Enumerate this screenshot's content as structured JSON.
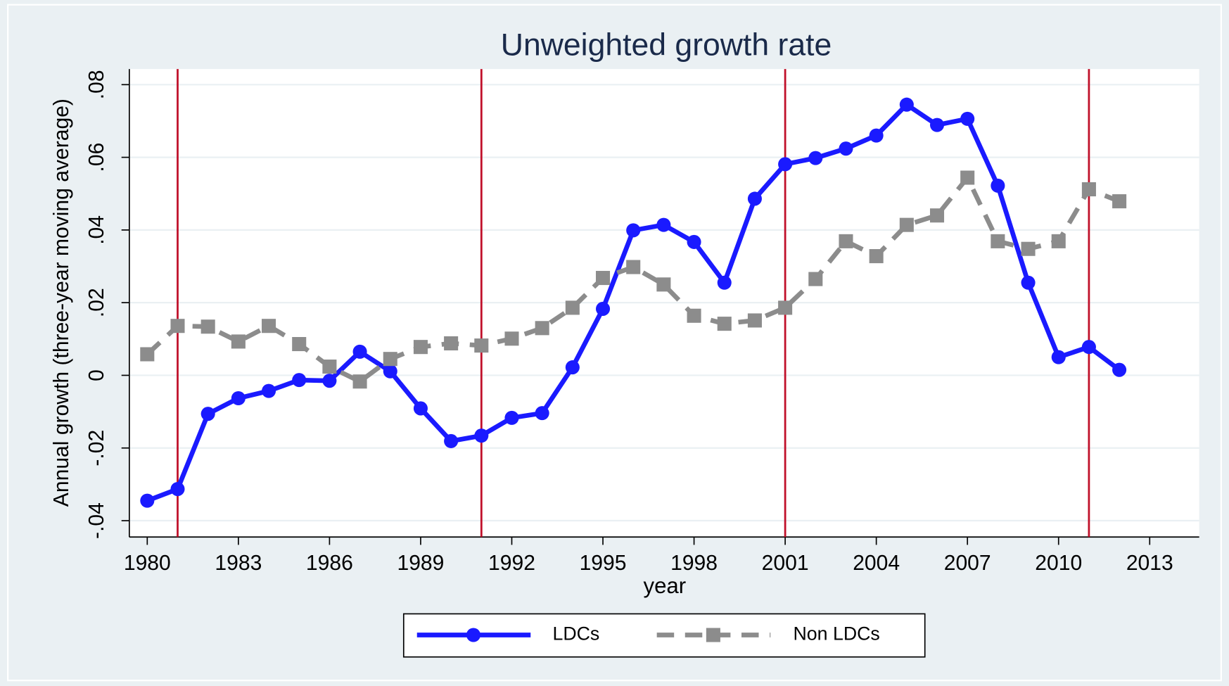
{
  "chart_data": {
    "type": "line",
    "title": "Unweighted growth rate",
    "x_label": "year",
    "y_label": "Annual growth (three-year moving average)",
    "x": [
      1980,
      1981,
      1982,
      1983,
      1984,
      1985,
      1986,
      1987,
      1988,
      1989,
      1990,
      1991,
      1992,
      1993,
      1994,
      1995,
      1996,
      1997,
      1998,
      1999,
      2000,
      2001,
      2002,
      2003,
      2004,
      2005,
      2006,
      2007,
      2008,
      2009,
      2010,
      2011,
      2012
    ],
    "series": [
      {
        "name": "LDCs",
        "color": "#1a1aff",
        "marker": "circle",
        "dashed": false,
        "values": [
          -0.0345,
          -0.0313,
          -0.0106,
          -0.0063,
          -0.0043,
          -0.0013,
          -0.0015,
          0.0065,
          0.0011,
          -0.0091,
          -0.0181,
          -0.0166,
          -0.0117,
          -0.0104,
          0.0022,
          0.0183,
          0.0399,
          0.0414,
          0.0367,
          0.0255,
          0.0486,
          0.0581,
          0.0598,
          0.0624,
          0.066,
          0.0745,
          0.0689,
          0.0706,
          0.0522,
          0.0255,
          0.005,
          0.0078,
          0.0015
        ]
      },
      {
        "name": "Non LDCs",
        "color": "#8c8c8c",
        "marker": "square",
        "dashed": true,
        "values": [
          0.0058,
          0.0136,
          0.0134,
          0.0093,
          0.0136,
          0.0086,
          0.0024,
          -0.0017,
          0.0045,
          0.0078,
          0.0088,
          0.0082,
          0.0101,
          0.013,
          0.0186,
          0.0268,
          0.0298,
          0.025,
          0.0164,
          0.0142,
          0.0151,
          0.0186,
          0.0265,
          0.0369,
          0.0328,
          0.0414,
          0.044,
          0.0544,
          0.0369,
          0.0348,
          0.0369,
          0.0512,
          0.0479
        ]
      }
    ],
    "xlim": [
      1979.41,
      2014.63
    ],
    "ylim": [
      -0.0445,
      0.0843
    ],
    "xticks": [
      1980,
      1983,
      1986,
      1989,
      1992,
      1995,
      1998,
      2001,
      2004,
      2007,
      2010,
      2013
    ],
    "yticks": [
      {
        "value": -0.04,
        "label": "-.04"
      },
      {
        "value": -0.02,
        "label": "-.02"
      },
      0,
      {
        "value": 0.02,
        "label": ".02"
      },
      {
        "value": 0.04,
        "label": ".04"
      },
      {
        "value": 0.06,
        "label": ".06"
      },
      {
        "value": 0.08,
        "label": ".08"
      }
    ],
    "vlines": [
      1981,
      1991,
      2001,
      2011
    ],
    "vline_color": "#c0102a",
    "grid": true,
    "legend": "bottom"
  }
}
